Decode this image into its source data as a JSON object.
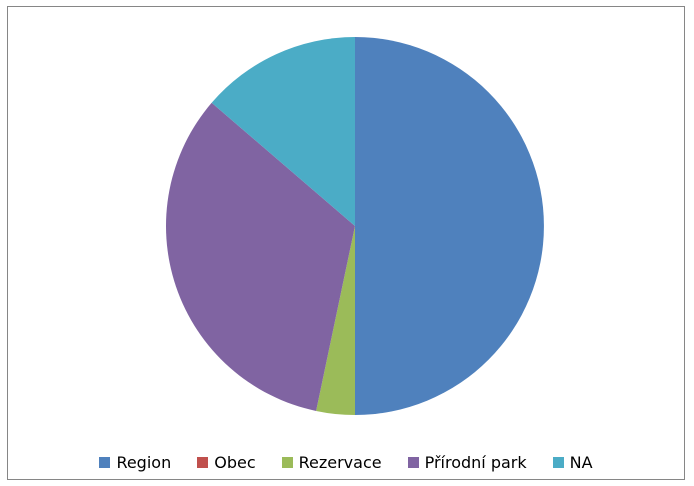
{
  "chart_data": {
    "type": "pie",
    "title": "",
    "series": [
      {
        "values": [
          50.0,
          0.0,
          3.3,
          33.0,
          13.7
        ]
      }
    ],
    "categories": [
      "Region",
      "Obec",
      "Rezervace",
      "Přírodní park",
      "NA"
    ],
    "colors": [
      "#4F81BD",
      "#C0504D",
      "#9BBB59",
      "#8064A2",
      "#4BACC6"
    ],
    "legend_position": "bottom",
    "start_angle": "12 o'clock",
    "direction": "clockwise"
  }
}
